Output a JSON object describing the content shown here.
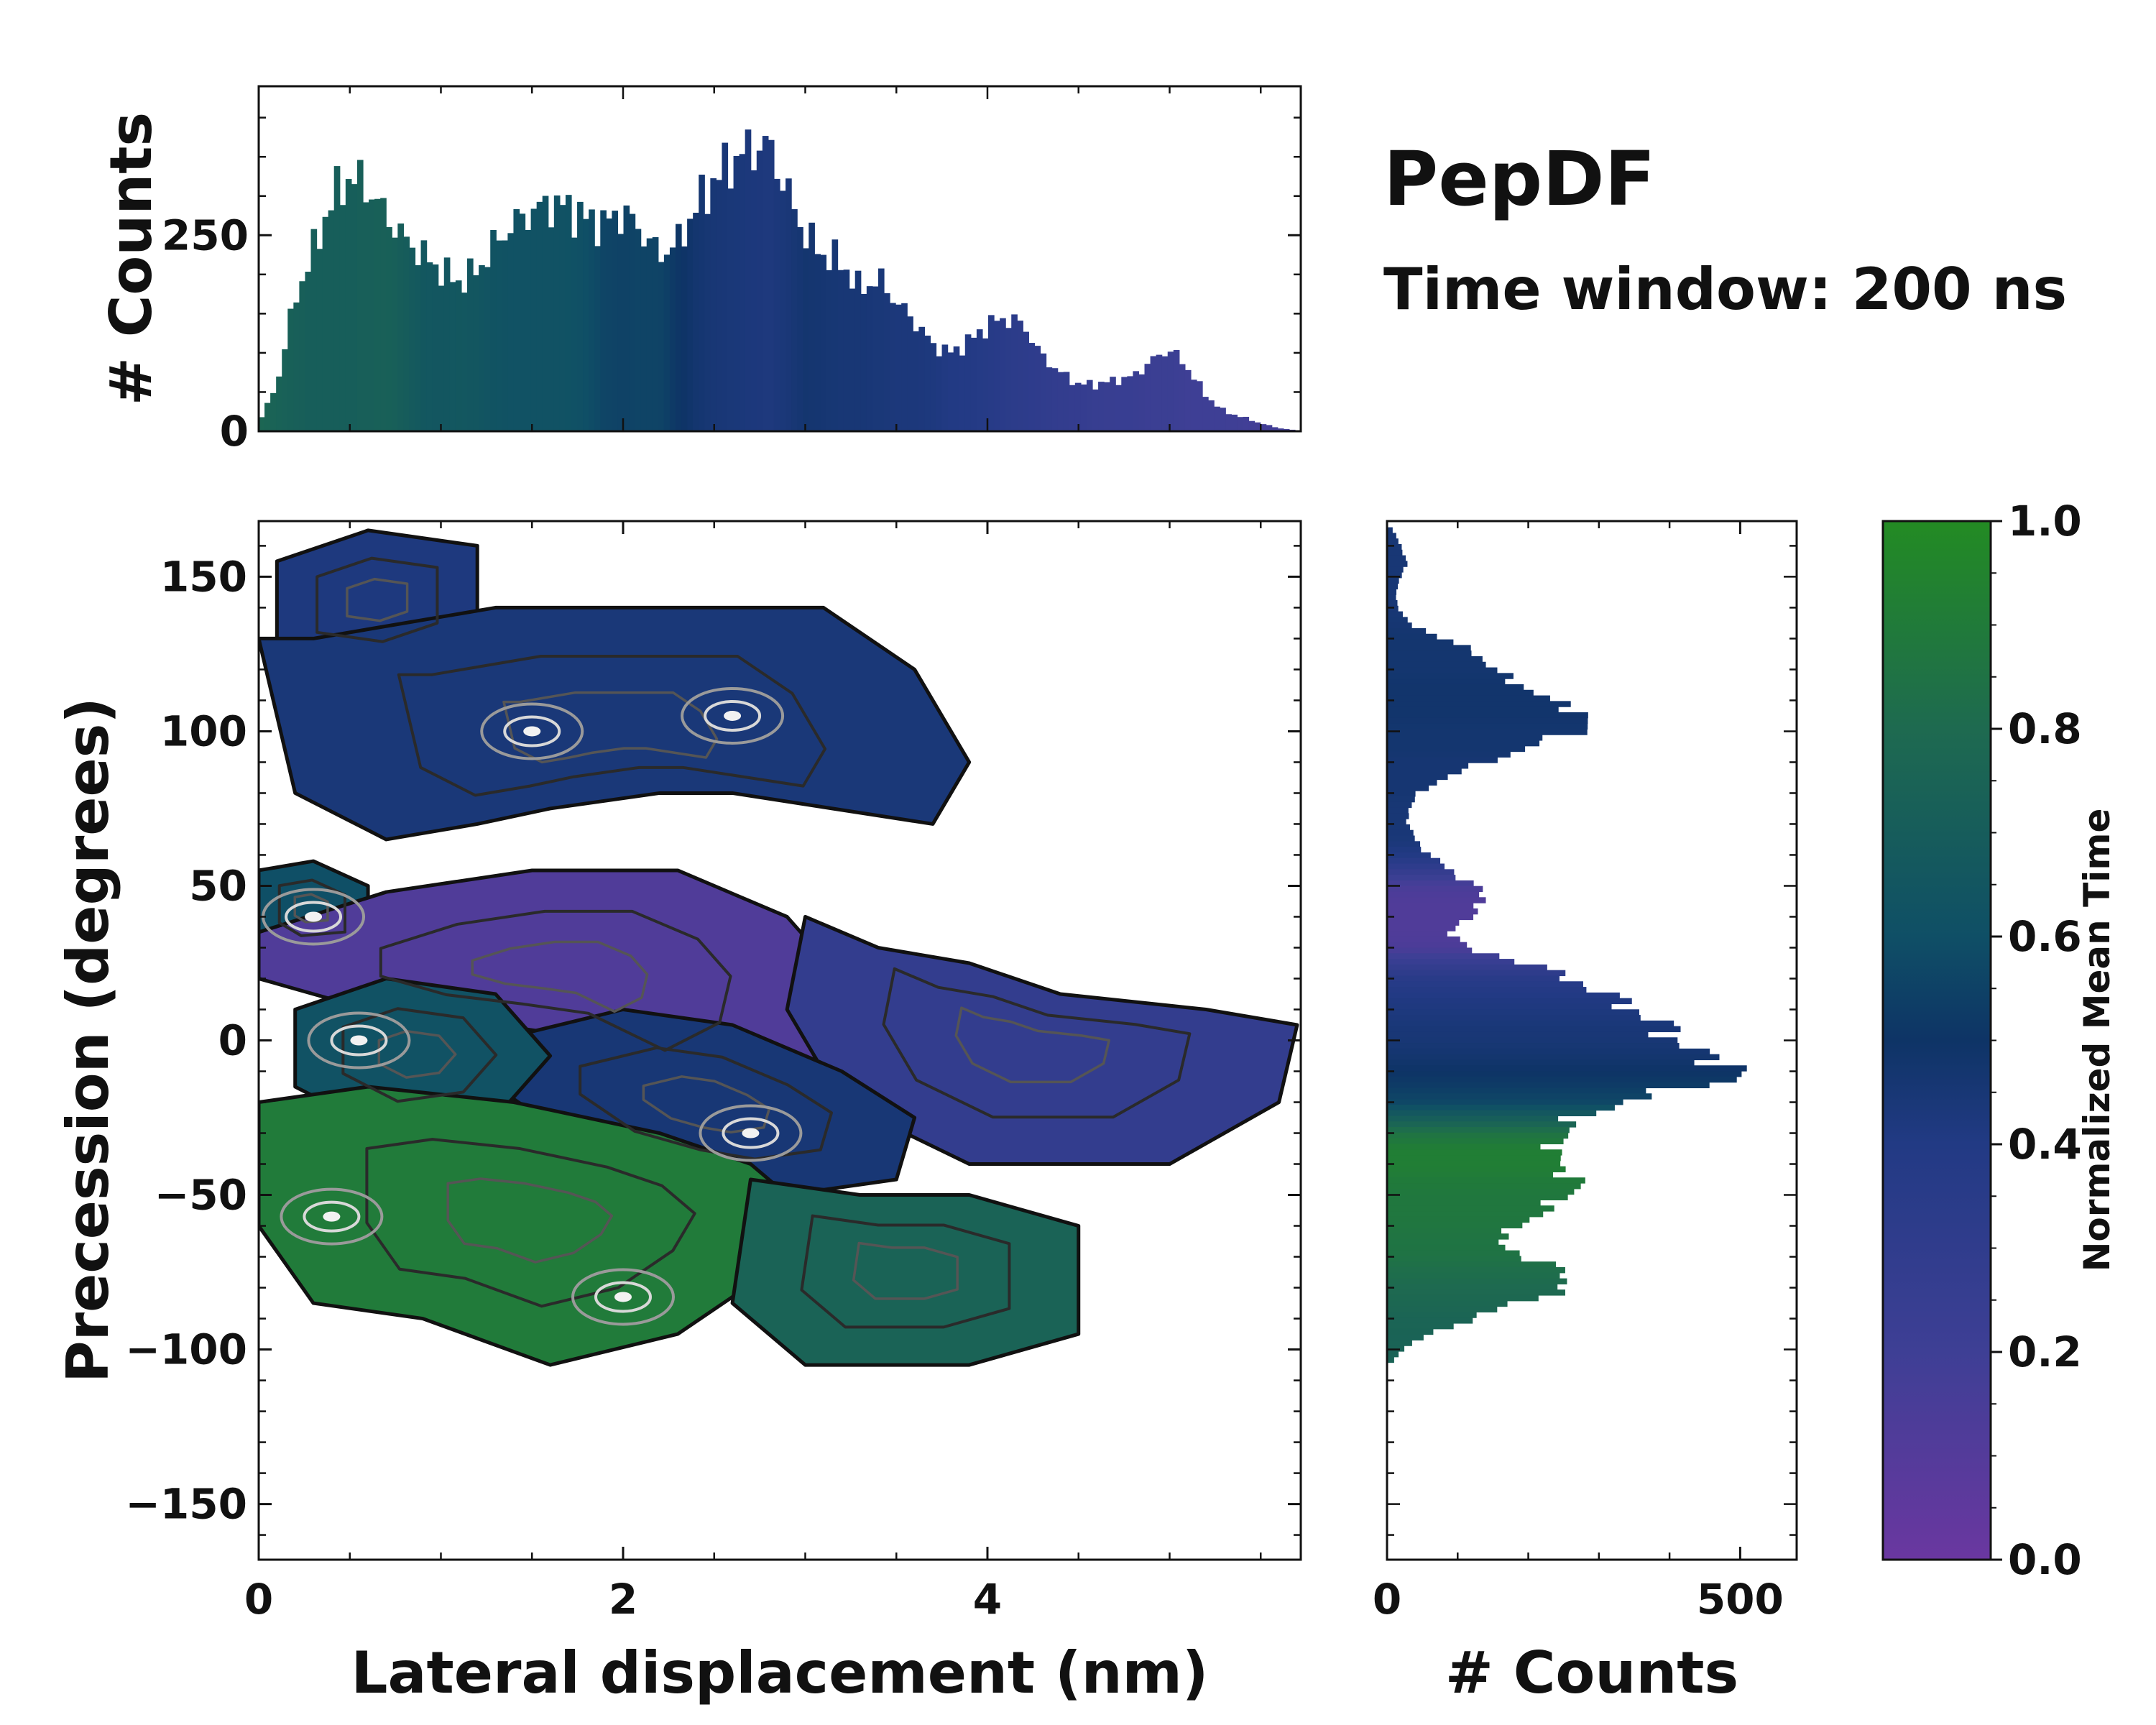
{
  "titles": {
    "main": "PepDF",
    "sub": "Time window: 200 ns"
  },
  "colors": {
    "c0": "#6a37a0",
    "c02": "#3e3f95",
    "c04": "#223a84",
    "c05": "#0e3466",
    "c06": "#0f4f66",
    "c08": "#1e6a50",
    "c10": "#238b23",
    "contour": "#111111"
  },
  "chart_data": [
    {
      "id": "top-histogram",
      "type": "bar",
      "ylabel": "# Counts",
      "xlim": [
        0,
        5.72
      ],
      "ylim": [
        0,
        440
      ],
      "yticks": [
        0,
        250
      ],
      "ytick_labels": [
        "0",
        "250"
      ],
      "x_points": [
        0.0,
        0.1,
        0.2,
        0.3,
        0.4,
        0.5,
        0.6,
        0.7,
        0.8,
        0.9,
        1.0,
        1.1,
        1.2,
        1.3,
        1.4,
        1.5,
        1.6,
        1.7,
        1.8,
        1.9,
        2.0,
        2.1,
        2.2,
        2.3,
        2.4,
        2.5,
        2.6,
        2.7,
        2.8,
        2.9,
        3.0,
        3.1,
        3.2,
        3.3,
        3.4,
        3.5,
        3.6,
        3.7,
        3.8,
        3.9,
        4.0,
        4.1,
        4.2,
        4.3,
        4.4,
        4.5,
        4.6,
        4.7,
        4.8,
        4.9,
        5.0,
        5.1,
        5.2,
        5.3,
        5.4,
        5.5,
        5.6,
        5.7
      ],
      "y_points": [
        10,
        60,
        170,
        230,
        295,
        325,
        310,
        275,
        245,
        225,
        205,
        190,
        205,
        240,
        265,
        280,
        290,
        285,
        270,
        265,
        280,
        255,
        225,
        240,
        285,
        320,
        345,
        360,
        365,
        305,
        250,
        225,
        215,
        180,
        195,
        165,
        140,
        110,
        100,
        115,
        135,
        145,
        135,
        95,
        75,
        60,
        60,
        65,
        70,
        90,
        105,
        80,
        45,
        25,
        18,
        10,
        4,
        1
      ],
      "color_values": [
        0.78,
        0.74,
        0.72,
        0.71,
        0.71,
        0.71,
        0.72,
        0.73,
        0.7,
        0.66,
        0.65,
        0.66,
        0.65,
        0.63,
        0.62,
        0.62,
        0.62,
        0.62,
        0.6,
        0.56,
        0.55,
        0.56,
        0.56,
        0.51,
        0.47,
        0.45,
        0.44,
        0.43,
        0.42,
        0.44,
        0.47,
        0.46,
        0.45,
        0.45,
        0.44,
        0.43,
        0.43,
        0.42,
        0.4,
        0.39,
        0.37,
        0.34,
        0.32,
        0.3,
        0.28,
        0.27,
        0.25,
        0.24,
        0.24,
        0.22,
        0.22,
        0.2,
        0.2,
        0.2,
        0.19,
        0.18,
        0.18,
        0.18
      ]
    },
    {
      "id": "main-2d-density",
      "type": "heatmap",
      "xlabel": "Lateral displacement (nm)",
      "ylabel": "Precession (degrees)",
      "xlim": [
        0,
        5.72
      ],
      "ylim": [
        -168,
        168
      ],
      "xticks": [
        0,
        2,
        4
      ],
      "xtick_labels": [
        "0",
        "2",
        "4"
      ],
      "yticks": [
        150,
        100,
        50,
        0,
        -50,
        -100,
        -150
      ],
      "ytick_labels": [
        "150",
        "100",
        "50",
        "0",
        "−50",
        "−100",
        "−150"
      ],
      "regions": [
        {
          "name": "upper-left-cluster",
          "color_value": 0.42,
          "x": [
            0.1,
            0.6,
            1.2,
            1.2,
            0.7,
            0.1
          ],
          "y": [
            155,
            165,
            160,
            130,
            120,
            125
          ]
        },
        {
          "name": "upper-band",
          "color_value": 0.44,
          "x": [
            0.0,
            0.3,
            1.3,
            2.5,
            3.1,
            3.6,
            3.9,
            3.7,
            2.6,
            2.2,
            1.6,
            1.2,
            0.7,
            0.2
          ],
          "y": [
            130,
            130,
            140,
            140,
            140,
            120,
            90,
            70,
            80,
            80,
            75,
            70,
            65,
            80
          ]
        },
        {
          "name": "left-mid-cluster",
          "color_value": 0.6,
          "x": [
            0.0,
            0.3,
            0.6,
            0.6,
            0.2,
            0.0
          ],
          "y": [
            55,
            58,
            50,
            30,
            28,
            35
          ]
        },
        {
          "name": "purple-band",
          "color_value": 0.12,
          "x": [
            0.0,
            0.7,
            1.5,
            2.3,
            2.9,
            3.2,
            3.1,
            2.6,
            1.9,
            1.3,
            0.6,
            0.0
          ],
          "y": [
            35,
            48,
            55,
            55,
            40,
            20,
            -5,
            -20,
            0,
            5,
            10,
            20
          ]
        },
        {
          "name": "right-blue-arm",
          "color_value": 0.28,
          "x": [
            3.0,
            3.4,
            3.9,
            4.4,
            5.2,
            5.7,
            5.6,
            5.0,
            4.5,
            3.9,
            3.2,
            2.9
          ],
          "y": [
            40,
            30,
            25,
            15,
            10,
            5,
            -20,
            -40,
            -40,
            -40,
            -20,
            10
          ]
        },
        {
          "name": "central-dark-core",
          "color_value": 0.45,
          "x": [
            1.3,
            2.0,
            2.6,
            3.2,
            3.6,
            3.5,
            2.9,
            2.4,
            1.8,
            1.3
          ],
          "y": [
            0,
            10,
            5,
            -10,
            -25,
            -45,
            -50,
            -45,
            -35,
            -15
          ]
        },
        {
          "name": "left-center-teal",
          "color_value": 0.62,
          "x": [
            0.2,
            0.7,
            1.3,
            1.6,
            1.3,
            0.7,
            0.2
          ],
          "y": [
            10,
            20,
            15,
            -5,
            -25,
            -30,
            -15
          ]
        },
        {
          "name": "green-lower-band",
          "color_value": 0.9,
          "x": [
            0.0,
            0.6,
            1.4,
            2.2,
            2.7,
            3.0,
            2.8,
            2.3,
            1.6,
            0.9,
            0.3,
            0.0
          ],
          "y": [
            -20,
            -15,
            -20,
            -30,
            -40,
            -55,
            -75,
            -95,
            -105,
            -90,
            -85,
            -60
          ]
        },
        {
          "name": "lower-right-teal",
          "color_value": 0.75,
          "x": [
            2.7,
            3.3,
            3.9,
            4.5,
            4.5,
            3.9,
            3.0,
            2.6
          ],
          "y": [
            -45,
            -50,
            -50,
            -60,
            -95,
            -105,
            -105,
            -85
          ]
        }
      ],
      "hot_spots": [
        {
          "x": 2.7,
          "y": -30
        },
        {
          "x": 1.5,
          "y": 100
        },
        {
          "x": 2.6,
          "y": 105
        },
        {
          "x": 0.3,
          "y": 40
        },
        {
          "x": 0.55,
          "y": 0
        },
        {
          "x": 2.0,
          "y": -83
        },
        {
          "x": 0.4,
          "y": -57
        }
      ]
    },
    {
      "id": "right-histogram",
      "type": "bar",
      "orientation": "horizontal",
      "xlabel": "# Counts",
      "xlim": [
        0,
        580
      ],
      "xticks": [
        0,
        500
      ],
      "xtick_labels": [
        "0",
        "500"
      ],
      "y_points": [
        165,
        160,
        155,
        150,
        145,
        140,
        135,
        130,
        125,
        120,
        115,
        110,
        105,
        100,
        95,
        90,
        85,
        80,
        75,
        70,
        65,
        60,
        55,
        50,
        45,
        40,
        35,
        30,
        25,
        20,
        15,
        10,
        5,
        0,
        -5,
        -10,
        -15,
        -20,
        -25,
        -30,
        -35,
        -40,
        -45,
        -50,
        -55,
        -60,
        -65,
        -70,
        -75,
        -80,
        -85,
        -90,
        -95,
        -100,
        -105
      ],
      "x_points": [
        8,
        20,
        28,
        20,
        12,
        16,
        30,
        80,
        130,
        150,
        190,
        230,
        290,
        270,
        200,
        140,
        80,
        45,
        30,
        30,
        40,
        60,
        90,
        125,
        140,
        115,
        90,
        110,
        200,
        260,
        310,
        350,
        390,
        410,
        445,
        520,
        430,
        330,
        270,
        250,
        240,
        240,
        270,
        260,
        220,
        190,
        150,
        200,
        250,
        260,
        180,
        120,
        60,
        20,
        6
      ],
      "color_values": [
        0.45,
        0.45,
        0.45,
        0.45,
        0.45,
        0.45,
        0.46,
        0.47,
        0.47,
        0.47,
        0.48,
        0.48,
        0.48,
        0.47,
        0.47,
        0.46,
        0.46,
        0.46,
        0.45,
        0.45,
        0.44,
        0.4,
        0.28,
        0.15,
        0.12,
        0.12,
        0.12,
        0.14,
        0.25,
        0.35,
        0.4,
        0.42,
        0.44,
        0.45,
        0.47,
        0.5,
        0.53,
        0.57,
        0.7,
        0.85,
        0.92,
        0.92,
        0.9,
        0.88,
        0.88,
        0.87,
        0.86,
        0.85,
        0.82,
        0.8,
        0.78,
        0.76,
        0.75,
        0.75,
        0.75
      ]
    },
    {
      "id": "colorbar",
      "type": "colorbar",
      "label": "Normalized Mean Time",
      "range": [
        0,
        1
      ],
      "ticks": [
        0.0,
        0.2,
        0.4,
        0.6,
        0.8,
        1.0
      ],
      "tick_labels": [
        "0.0",
        "0.2",
        "0.4",
        "0.6",
        "0.8",
        "1.0"
      ]
    }
  ]
}
